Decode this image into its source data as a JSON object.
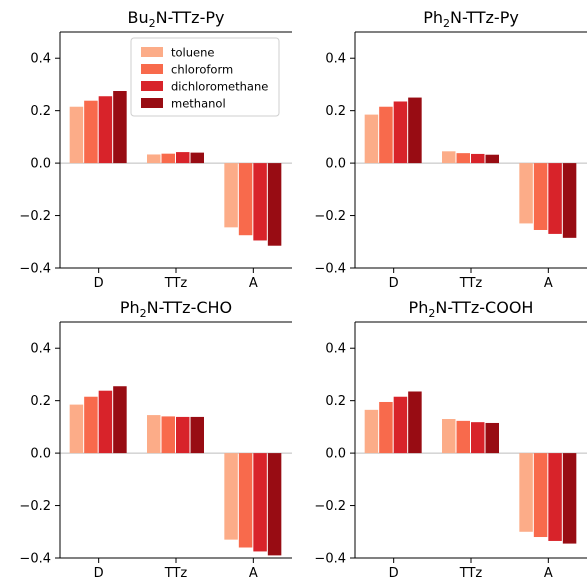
{
  "chart_data": [
    {
      "type": "bar",
      "title": "Bu2N-TTz-Py",
      "title_parts": [
        {
          "text": "Bu",
          "sub": false
        },
        {
          "text": "2",
          "sub": true
        },
        {
          "text": "N-TTz-Py",
          "sub": false
        }
      ],
      "categories": [
        "D",
        "TTz",
        "A"
      ],
      "ylim": [
        -0.4,
        0.5
      ],
      "yticks": [
        {
          "value": 0.4,
          "label": "0.4"
        },
        {
          "value": 0.2,
          "label": "0.2"
        },
        {
          "value": 0.0,
          "label": "0.0"
        },
        {
          "value": -0.2,
          "label": "−0.2"
        },
        {
          "value": -0.4,
          "label": "−0.4"
        }
      ],
      "series": [
        {
          "name": "toluene",
          "values": [
            0.215,
            0.033,
            -0.245
          ]
        },
        {
          "name": "chloroform",
          "values": [
            0.238,
            0.036,
            -0.275
          ]
        },
        {
          "name": "dichloromethane",
          "values": [
            0.255,
            0.042,
            -0.295
          ]
        },
        {
          "name": "methanol",
          "values": [
            0.275,
            0.04,
            -0.315
          ]
        }
      ],
      "legend": "top-center",
      "grid": false
    },
    {
      "type": "bar",
      "title": "Ph2N-TTz-Py",
      "title_parts": [
        {
          "text": "Ph",
          "sub": false
        },
        {
          "text": "2",
          "sub": true
        },
        {
          "text": "N-TTz-Py",
          "sub": false
        }
      ],
      "categories": [
        "D",
        "TTz",
        "A"
      ],
      "ylim": [
        -0.4,
        0.5
      ],
      "yticks": [
        {
          "value": 0.4,
          "label": "0.4"
        },
        {
          "value": 0.2,
          "label": "0.2"
        },
        {
          "value": 0.0,
          "label": "0.0"
        },
        {
          "value": -0.2,
          "label": "−0.2"
        },
        {
          "value": -0.4,
          "label": "−0.4"
        }
      ],
      "series": [
        {
          "name": "toluene",
          "values": [
            0.185,
            0.045,
            -0.23
          ]
        },
        {
          "name": "chloroform",
          "values": [
            0.215,
            0.038,
            -0.255
          ]
        },
        {
          "name": "dichloromethane",
          "values": [
            0.235,
            0.035,
            -0.27
          ]
        },
        {
          "name": "methanol",
          "values": [
            0.25,
            0.032,
            -0.285
          ]
        }
      ],
      "grid": false
    },
    {
      "type": "bar",
      "title": "Ph2N-TTz-CHO",
      "title_parts": [
        {
          "text": "Ph",
          "sub": false
        },
        {
          "text": "2",
          "sub": true
        },
        {
          "text": "N-TTz-CHO",
          "sub": false
        }
      ],
      "categories": [
        "D",
        "TTz",
        "A"
      ],
      "ylim": [
        -0.4,
        0.5
      ],
      "yticks": [
        {
          "value": 0.4,
          "label": "0.4"
        },
        {
          "value": 0.2,
          "label": "0.2"
        },
        {
          "value": 0.0,
          "label": "0.0"
        },
        {
          "value": -0.2,
          "label": "−0.2"
        },
        {
          "value": -0.4,
          "label": "−0.4"
        }
      ],
      "series": [
        {
          "name": "toluene",
          "values": [
            0.185,
            0.145,
            -0.33
          ]
        },
        {
          "name": "chloroform",
          "values": [
            0.215,
            0.14,
            -0.36
          ]
        },
        {
          "name": "dichloromethane",
          "values": [
            0.238,
            0.138,
            -0.375
          ]
        },
        {
          "name": "methanol",
          "values": [
            0.255,
            0.138,
            -0.39
          ]
        }
      ],
      "grid": false
    },
    {
      "type": "bar",
      "title": "Ph2N-TTz-COOH",
      "title_parts": [
        {
          "text": "Ph",
          "sub": false
        },
        {
          "text": "2",
          "sub": true
        },
        {
          "text": "N-TTz-COOH",
          "sub": false
        }
      ],
      "categories": [
        "D",
        "TTz",
        "A"
      ],
      "ylim": [
        -0.4,
        0.5
      ],
      "yticks": [
        {
          "value": 0.4,
          "label": "0.4"
        },
        {
          "value": 0.2,
          "label": "0.2"
        },
        {
          "value": 0.0,
          "label": "0.0"
        },
        {
          "value": -0.2,
          "label": "−0.2"
        },
        {
          "value": -0.4,
          "label": "−0.4"
        }
      ],
      "series": [
        {
          "name": "toluene",
          "values": [
            0.165,
            0.13,
            -0.3
          ]
        },
        {
          "name": "chloroform",
          "values": [
            0.195,
            0.123,
            -0.32
          ]
        },
        {
          "name": "dichloromethane",
          "values": [
            0.215,
            0.118,
            -0.335
          ]
        },
        {
          "name": "methanol",
          "values": [
            0.235,
            0.115,
            -0.345
          ]
        }
      ],
      "grid": false
    }
  ],
  "legend": {
    "items": [
      {
        "label": "toluene",
        "color": "#fcac88"
      },
      {
        "label": "chloroform",
        "color": "#f86a4c"
      },
      {
        "label": "dichloromethane",
        "color": "#d8232a"
      },
      {
        "label": "methanol",
        "color": "#980c13"
      }
    ]
  }
}
